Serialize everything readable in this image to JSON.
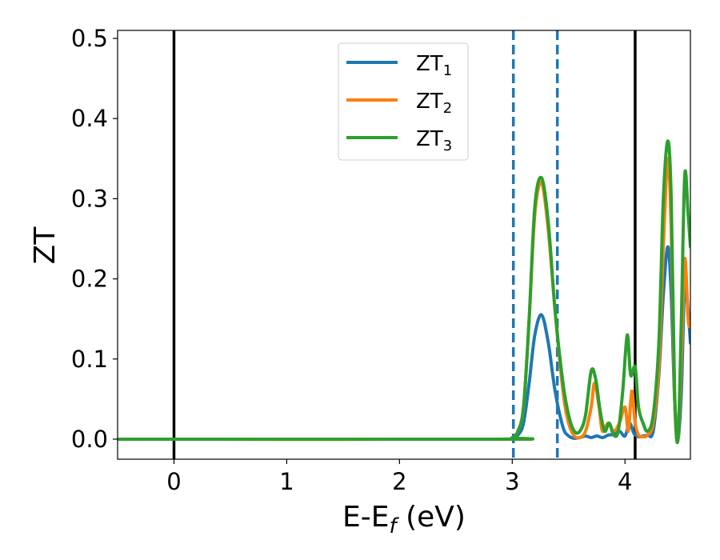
{
  "chart_data": {
    "type": "line",
    "xlabel": "E-E",
    "xlabel_sub": "f",
    "xlabel_unit": " (eV)",
    "ylabel": "ZT",
    "xlim": [
      -0.5,
      4.58
    ],
    "ylim": [
      -0.025,
      0.51
    ],
    "xticks": [
      0,
      1,
      2,
      3,
      4
    ],
    "yticks": [
      "0.0",
      "0.1",
      "0.2",
      "0.3",
      "0.4",
      "0.5"
    ],
    "legend_position": "top-center",
    "vlines": [
      {
        "x": 0.0,
        "style": "solid",
        "color": "#000000"
      },
      {
        "x": 3.01,
        "style": "dashed",
        "color": "#1f77b4"
      },
      {
        "x": 3.4,
        "style": "dashed",
        "color": "#1f77b4"
      },
      {
        "x": 4.09,
        "style": "solid",
        "color": "#000000"
      }
    ],
    "series": [
      {
        "name": "ZT",
        "sub": "1",
        "color": "#1f77b4",
        "x": [
          -0.5,
          2.9,
          3.0,
          3.05,
          3.1,
          3.15,
          3.2,
          3.26,
          3.32,
          3.38,
          3.45,
          3.5,
          3.55,
          3.6,
          3.65,
          3.7,
          3.75,
          3.8,
          3.85,
          3.9,
          3.95,
          4.0,
          4.04,
          4.08,
          4.12,
          4.16,
          4.2,
          4.25,
          4.3,
          4.34,
          4.38,
          4.41,
          4.44,
          4.47,
          4.5,
          4.53,
          4.56,
          4.58
        ],
        "y": [
          0.0,
          0.0,
          0.001,
          0.005,
          0.02,
          0.07,
          0.13,
          0.155,
          0.12,
          0.06,
          0.015,
          0.004,
          0.001,
          0.002,
          0.004,
          0.002,
          0.004,
          0.002,
          0.005,
          0.006,
          0.01,
          0.004,
          0.02,
          0.007,
          0.003,
          0.004,
          0.005,
          0.01,
          0.08,
          0.18,
          0.24,
          0.18,
          0.05,
          0.0,
          0.06,
          0.195,
          0.16,
          0.12
        ]
      },
      {
        "name": "ZT",
        "sub": "2",
        "color": "#ff7f0e",
        "x": [
          -0.5,
          2.9,
          3.0,
          3.05,
          3.1,
          3.15,
          3.2,
          3.26,
          3.32,
          3.38,
          3.45,
          3.5,
          3.55,
          3.6,
          3.65,
          3.7,
          3.73,
          3.77,
          3.8,
          3.85,
          3.9,
          3.95,
          4.0,
          4.03,
          4.06,
          4.09,
          4.12,
          4.16,
          4.2,
          4.25,
          4.3,
          4.34,
          4.38,
          4.41,
          4.44,
          4.47,
          4.5,
          4.53,
          4.56,
          4.58
        ],
        "y": [
          0.0,
          0.0,
          0.002,
          0.01,
          0.04,
          0.15,
          0.28,
          0.32,
          0.26,
          0.16,
          0.06,
          0.02,
          0.004,
          0.002,
          0.01,
          0.04,
          0.07,
          0.04,
          0.01,
          0.02,
          0.01,
          0.02,
          0.04,
          0.01,
          0.06,
          0.02,
          0.005,
          0.003,
          0.005,
          0.02,
          0.09,
          0.24,
          0.35,
          0.26,
          0.05,
          0.0,
          0.1,
          0.225,
          0.15,
          0.14
        ]
      },
      {
        "name": "ZT",
        "sub": "3",
        "color": "#2ca02c",
        "x": [
          -0.5,
          2.9,
          3.0,
          3.05,
          3.1,
          3.15,
          3.2,
          3.26,
          3.32,
          3.38,
          3.45,
          3.5,
          3.55,
          3.6,
          3.65,
          3.7,
          3.74,
          3.78,
          3.82,
          3.86,
          3.9,
          3.94,
          3.98,
          4.02,
          4.05,
          4.09,
          4.12,
          4.16,
          4.2,
          4.25,
          4.3,
          4.34,
          4.38,
          4.41,
          4.44,
          4.47,
          4.5,
          4.53,
          4.56,
          4.58
        ],
        "y": [
          0.0,
          0.0,
          0.002,
          0.01,
          0.04,
          0.15,
          0.29,
          0.326,
          0.27,
          0.16,
          0.07,
          0.03,
          0.01,
          0.01,
          0.03,
          0.085,
          0.075,
          0.035,
          0.01,
          0.02,
          0.005,
          0.01,
          0.06,
          0.13,
          0.08,
          0.09,
          0.04,
          0.02,
          0.01,
          0.03,
          0.12,
          0.3,
          0.372,
          0.3,
          0.06,
          0.0,
          0.15,
          0.33,
          0.28,
          0.24
        ]
      }
    ]
  }
}
